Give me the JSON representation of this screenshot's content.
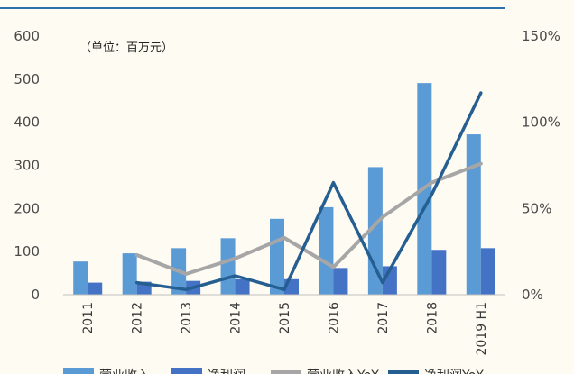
{
  "chart_data": {
    "type": "bar",
    "unit_note": "（单位：百万元）",
    "categories": [
      "2011",
      "2012",
      "2013",
      "2014",
      "2015",
      "2016",
      "2017",
      "2018",
      "2019 H1"
    ],
    "series": [
      {
        "name": "营业收入",
        "kind": "bar",
        "axis": "left",
        "color": "#5b9bd5",
        "values": [
          77,
          96,
          108,
          131,
          176,
          203,
          296,
          491,
          372
        ]
      },
      {
        "name": "净利润",
        "kind": "bar",
        "axis": "left",
        "color": "#4472c4",
        "values": [
          28,
          30,
          32,
          36,
          36,
          62,
          66,
          104,
          108
        ]
      },
      {
        "name": "营业收入YoY",
        "kind": "line",
        "axis": "right",
        "color": "#a6a6a6",
        "values": [
          null,
          23,
          12,
          21,
          33,
          16,
          45,
          65,
          76
        ]
      },
      {
        "name": "净利润YoY",
        "kind": "line",
        "axis": "right",
        "color": "#255e91",
        "values": [
          null,
          7,
          3,
          11,
          3,
          65,
          7,
          58,
          117
        ]
      }
    ],
    "y_left": {
      "min": 0,
      "max": 600,
      "ticks": [
        "0",
        "100",
        "200",
        "300",
        "400",
        "500",
        "600"
      ]
    },
    "y_right": {
      "min": 0,
      "max": 150,
      "ticks": [
        "0%",
        "50%",
        "100%",
        "150%"
      ]
    },
    "grid": false,
    "legend": {
      "placement": "bottom"
    }
  }
}
